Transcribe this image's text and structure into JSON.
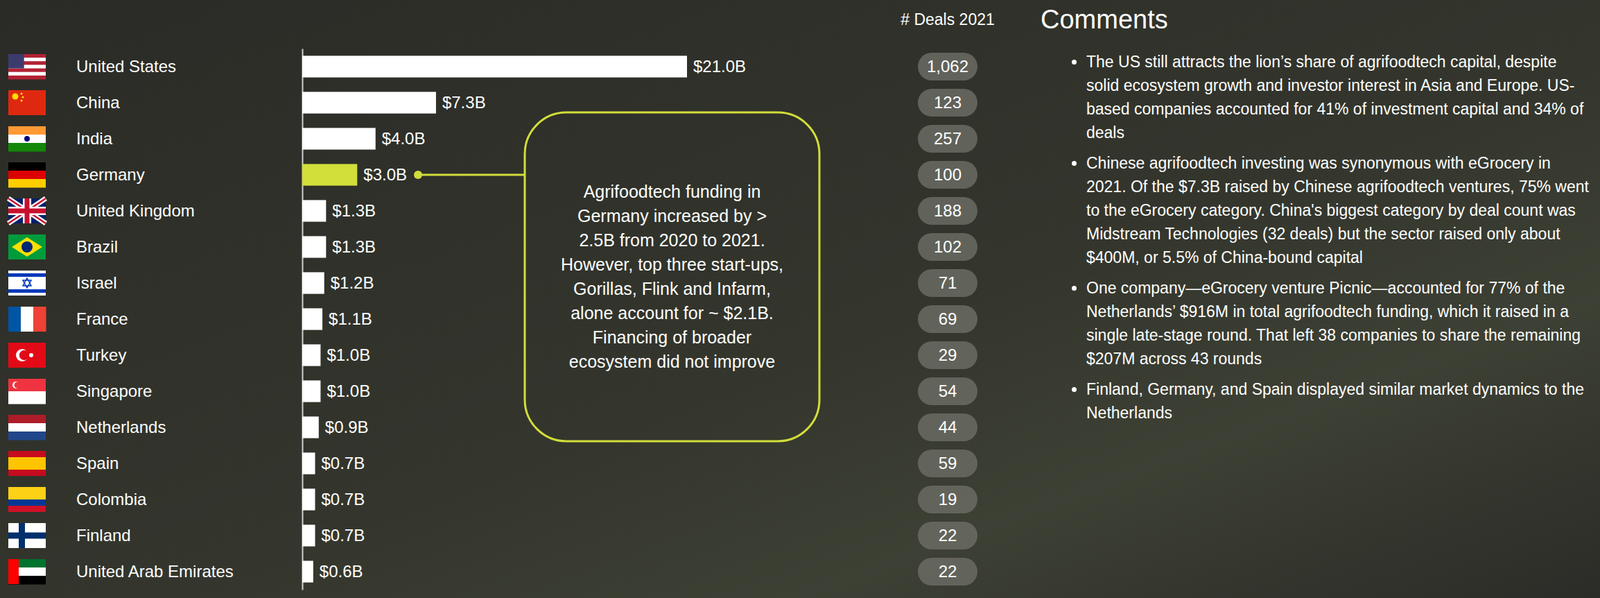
{
  "chart_data": {
    "type": "bar",
    "orientation": "horizontal",
    "categories": [
      "United States",
      "China",
      "India",
      "Germany",
      "United Kingdom",
      "Brazil",
      "Israel",
      "France",
      "Turkey",
      "Singapore",
      "Netherlands",
      "Spain",
      "Colombia",
      "Finland",
      "United Arab Emirates"
    ],
    "values": [
      21.0,
      7.3,
      4.0,
      3.0,
      1.3,
      1.3,
      1.2,
      1.1,
      1.0,
      1.0,
      0.9,
      0.7,
      0.7,
      0.7,
      0.6
    ],
    "value_labels": [
      "$21.0B",
      "$7.3B",
      "$4.0B",
      "$3.0B",
      "$1.3B",
      "$1.3B",
      "$1.2B",
      "$1.1B",
      "$1.0B",
      "$1.0B",
      "$0.9B",
      "$0.7B",
      "$0.7B",
      "$0.7B",
      "$0.6B"
    ],
    "colors": [
      "#ffffff",
      "#ffffff",
      "#ffffff",
      "#d2de3a",
      "#ffffff",
      "#ffffff",
      "#ffffff",
      "#ffffff",
      "#ffffff",
      "#ffffff",
      "#ffffff",
      "#ffffff",
      "#ffffff",
      "#ffffff",
      "#ffffff"
    ],
    "xlim": [
      0,
      21.0
    ],
    "tick_labels": false,
    "data_labels": true,
    "annotation": "Agrifoodtech funding in Germany increased by > 2.5B from 2020 to 2021. However, top three start-ups, Gorillas, Flink and Infarm, alone account for ~ $2.1B. Financing of broader ecosystem did not improve",
    "deals_title": "# Deals 2021",
    "deals": [
      1062,
      123,
      257,
      100,
      188,
      102,
      71,
      69,
      29,
      54,
      44,
      59,
      19,
      22,
      22
    ],
    "comments_title": "Comments",
    "comments": [
      "The US still attracts the lion’s share of agrifoodtech capital, despite solid ecosystem growth and investor interest in Asia and Europe. US-based companies accounted for 41% of investment capital and 34% of deals",
      "Chinese agrifoodtech investing was synonymous with eGrocery in 2021. Of the $7.3B raised by Chinese agrifoodtech ventures, 75% went to the eGrocery category. China's biggest category by deal count was Midstream Technologies (32 deals) but the sector raised only about $400M, or 5.5% of China-bound capital",
      "One company—eGrocery venture Picnic—accounted for 77% of the Netherlands’ $916M in total agrifoodtech funding, which it raised in a single late-stage round. That left 38 companies to share the remaining $207M across 43 rounds",
      "Finland, Germany, and Spain displayed similar market dynamics to the Netherlands"
    ]
  }
}
